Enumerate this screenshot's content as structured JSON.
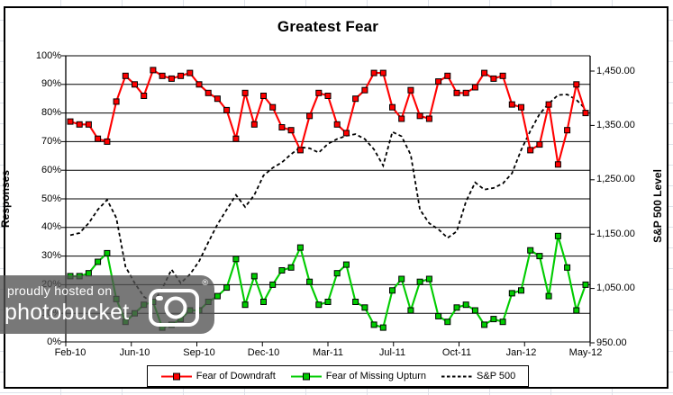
{
  "title": "Greatest Fear",
  "axes": {
    "left": {
      "title": "Responses",
      "tick_labels": [
        "100%",
        "90%",
        "80%",
        "70%",
        "60%",
        "50%",
        "40%",
        "30%",
        "20%",
        "10%",
        "0%"
      ]
    },
    "right": {
      "title": "S&P 500 Level",
      "tick_labels": [
        "1,450.00",
        "1,350.00",
        "1,250.00",
        "1,150.00",
        "1,050.00",
        "950.00"
      ]
    },
    "x": {
      "tick_labels": [
        "Feb-10",
        "Jun-10",
        "Sep-10",
        "Dec-10",
        "Mar-11",
        "Jul-11",
        "Oct-11",
        "Jan-12",
        "May-12"
      ]
    }
  },
  "legend": {
    "items": [
      {
        "label": "Fear of Downdraft",
        "color": "#FF0000",
        "dashed": false,
        "marker": true
      },
      {
        "label": "Fear of Missing Upturn",
        "color": "#00CC00",
        "dashed": false,
        "marker": true
      },
      {
        "label": "S&P 500",
        "color": "#000000",
        "dashed": true,
        "marker": false
      }
    ]
  },
  "watermark": {
    "line1": "proudly hosted on",
    "line2": "photobucket",
    "registered": "®"
  },
  "chart_data": {
    "type": "line",
    "title": "Greatest Fear",
    "x_tick_labels": [
      "Feb-10",
      "Jun-10",
      "Sep-10",
      "Dec-10",
      "Mar-11",
      "Jul-11",
      "Oct-11",
      "Jan-12",
      "May-12"
    ],
    "x_note": "57 bi-weekly survey points, Feb-2010 through May-2012; labels every 7th point",
    "left_axis": {
      "label": "Responses",
      "min": 0,
      "max": 100,
      "tick_step": 10,
      "unit": "%",
      "gridlines": "horizontal"
    },
    "right_axis": {
      "label": "S&P 500 Level",
      "min": 950,
      "max": 1450,
      "tick_step": 100
    },
    "legend_position": "bottom",
    "series": [
      {
        "name": "Fear of Downdraft",
        "axis": "left",
        "unit": "%",
        "color": "#FF0000",
        "line_style": "solid",
        "marker": "square",
        "values": [
          77,
          76,
          76,
          71,
          70,
          84,
          93,
          90,
          86,
          95,
          93,
          92,
          93,
          94,
          90,
          87,
          85,
          81,
          71,
          87,
          76,
          86,
          82,
          75,
          74,
          67,
          79,
          87,
          86,
          76,
          73,
          85,
          88,
          94,
          94,
          82,
          78,
          88,
          79,
          78,
          91,
          93,
          87,
          87,
          89,
          94,
          92,
          93,
          83,
          82,
          67,
          69,
          83,
          62,
          74,
          90,
          80
        ]
      },
      {
        "name": "Fear of Missing Upturn",
        "axis": "left",
        "unit": "%",
        "color": "#00CC00",
        "line_style": "solid",
        "marker": "square",
        "values": [
          23,
          23,
          24,
          28,
          31,
          15,
          7,
          10,
          13,
          14,
          5,
          6,
          8,
          11,
          11,
          14,
          16,
          19,
          29,
          13,
          23,
          14,
          20,
          25,
          26,
          33,
          21,
          13,
          14,
          24,
          27,
          14,
          12,
          6,
          5,
          18,
          22,
          11,
          21,
          22,
          9,
          7,
          12,
          13,
          11,
          6,
          8,
          7,
          17,
          18,
          32,
          30,
          16,
          37,
          26,
          11,
          20
        ]
      },
      {
        "name": "S&P 500",
        "axis": "right",
        "unit": "index",
        "color": "#000000",
        "line_style": "dashed",
        "marker": "none",
        "values": [
          1148,
          1152,
          1170,
          1195,
          1213,
          1180,
          1090,
          1060,
          1035,
          1023,
          1050,
          1085,
          1060,
          1076,
          1100,
          1135,
          1168,
          1195,
          1222,
          1200,
          1222,
          1258,
          1272,
          1282,
          1297,
          1310,
          1308,
          1300,
          1316,
          1325,
          1331,
          1334,
          1325,
          1306,
          1276,
          1338,
          1330,
          1296,
          1195,
          1170,
          1159,
          1143,
          1155,
          1210,
          1245,
          1232,
          1235,
          1243,
          1262,
          1305,
          1340,
          1371,
          1390,
          1406,
          1407,
          1397,
          1380
        ]
      }
    ]
  }
}
